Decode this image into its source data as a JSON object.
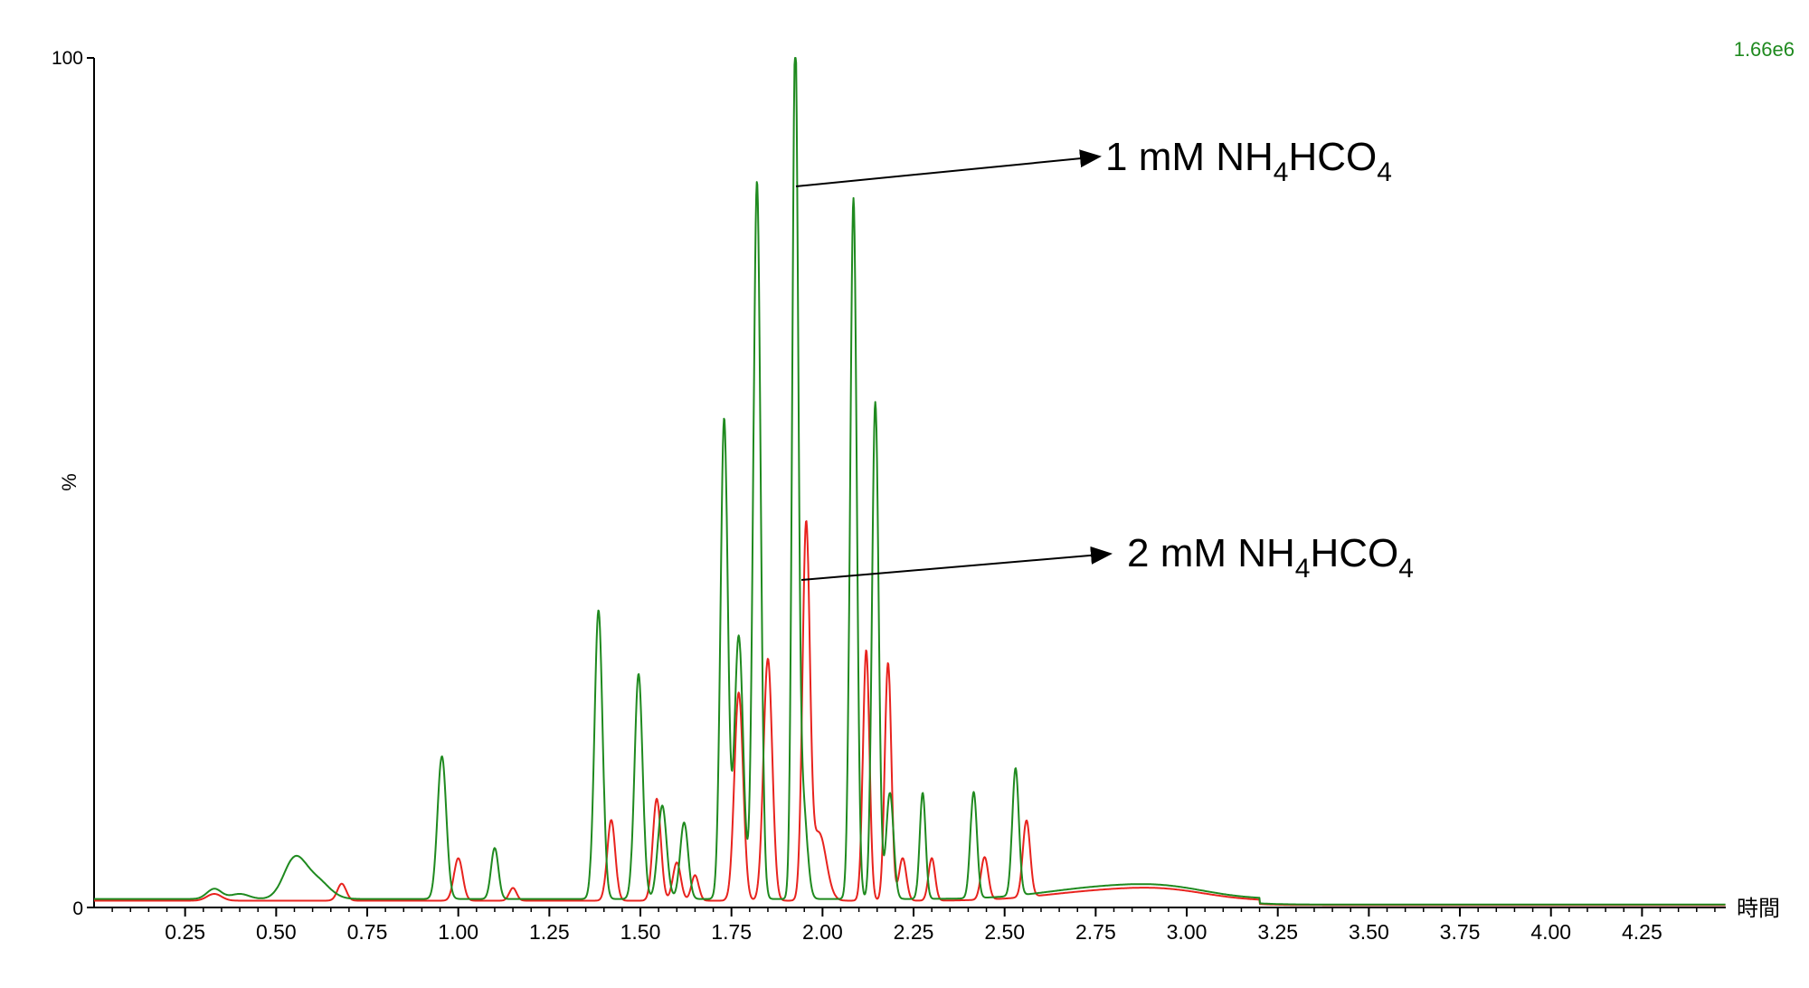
{
  "scale_label": "1.66e6",
  "colors": {
    "series_1mM": "#1f8a1f",
    "series_2mM": "#e8231e",
    "scale_label": "#1f8a1f",
    "axis": "#000000"
  },
  "chart_data": {
    "type": "line",
    "title": "",
    "xlabel": "時間",
    "ylabel": "%",
    "xlim": [
      0.0,
      4.48
    ],
    "ylim": [
      0,
      100
    ],
    "x_ticks": [
      0.25,
      0.5,
      0.75,
      1.0,
      1.25,
      1.5,
      1.75,
      2.0,
      2.25,
      2.5,
      2.75,
      3.0,
      3.25,
      3.5,
      3.75,
      4.0,
      4.25
    ],
    "x_tick_labels": [
      "0.25",
      "0.50",
      "0.75",
      "1.00",
      "1.25",
      "1.50",
      "1.75",
      "2.00",
      "2.25",
      "2.50",
      "2.75",
      "3.00",
      "3.25",
      "3.50",
      "3.75",
      "4.00",
      "4.25"
    ],
    "y_tick_labels": [
      "0",
      "100"
    ],
    "grid": false,
    "legend": "none",
    "series": [
      {
        "name": "1 mM NH4HCO4",
        "label": {
          "text": "1 mM NH",
          "sub1": "4",
          "mid": "HCO",
          "sub2": "4"
        },
        "baseline": 1.0,
        "peaks": [
          [
            0.33,
            1.2,
            0.02
          ],
          [
            0.4,
            0.6,
            0.025
          ],
          [
            0.55,
            4.5,
            0.03
          ],
          [
            0.61,
            2.2,
            0.035
          ],
          [
            0.955,
            16.8,
            0.012
          ],
          [
            1.1,
            6.0,
            0.01
          ],
          [
            1.385,
            34.0,
            0.011
          ],
          [
            1.495,
            26.5,
            0.011
          ],
          [
            1.56,
            11.0,
            0.012
          ],
          [
            1.62,
            9.0,
            0.011
          ],
          [
            1.73,
            56.5,
            0.01
          ],
          [
            1.77,
            31.0,
            0.012
          ],
          [
            1.82,
            84.5,
            0.01
          ],
          [
            1.925,
            99.0,
            0.008
          ],
          [
            1.945,
            12.0,
            0.012
          ],
          [
            2.085,
            82.5,
            0.009
          ],
          [
            2.145,
            58.5,
            0.009
          ],
          [
            2.185,
            12.5,
            0.01
          ],
          [
            2.275,
            12.5,
            0.008
          ],
          [
            2.415,
            12.5,
            0.009
          ],
          [
            2.53,
            15.0,
            0.009
          ],
          [
            2.75,
            1.2,
            0.15
          ],
          [
            2.95,
            1.1,
            0.12
          ]
        ]
      },
      {
        "name": "2 mM NH4HCO4",
        "label": {
          "text": "2 mM NH",
          "sub1": "4",
          "mid": "HCO",
          "sub2": "4"
        },
        "baseline": 0.8,
        "peaks": [
          [
            0.33,
            0.8,
            0.02
          ],
          [
            0.68,
            2.0,
            0.012
          ],
          [
            1.0,
            5.0,
            0.012
          ],
          [
            1.15,
            1.5,
            0.01
          ],
          [
            1.42,
            9.5,
            0.011
          ],
          [
            1.545,
            12.0,
            0.011
          ],
          [
            1.6,
            4.5,
            0.011
          ],
          [
            1.65,
            3.0,
            0.01
          ],
          [
            1.77,
            24.5,
            0.012
          ],
          [
            1.85,
            28.5,
            0.012
          ],
          [
            1.955,
            43.0,
            0.01
          ],
          [
            1.99,
            8.0,
            0.02
          ],
          [
            2.12,
            29.5,
            0.009
          ],
          [
            2.18,
            28.0,
            0.009
          ],
          [
            2.22,
            5.0,
            0.01
          ],
          [
            2.3,
            5.0,
            0.009
          ],
          [
            2.445,
            5.0,
            0.01
          ],
          [
            2.56,
            9.0,
            0.01
          ],
          [
            2.75,
            1.0,
            0.15
          ],
          [
            2.95,
            1.0,
            0.12
          ]
        ]
      }
    ]
  }
}
